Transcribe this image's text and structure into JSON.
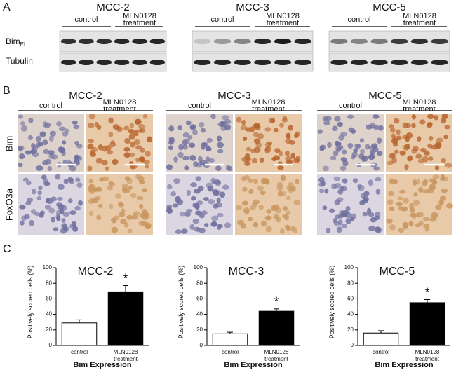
{
  "panel_a": {
    "letter": "A",
    "row_labels": [
      {
        "text": "Bim",
        "subscript": "EL"
      },
      {
        "text": "Tubulin"
      }
    ],
    "blots": [
      {
        "title": "MCC-2",
        "groups": [
          "control",
          "MLN0128 treatment"
        ]
      },
      {
        "title": "MCC-3",
        "groups": [
          "control",
          "MLN0128 treatment"
        ]
      },
      {
        "title": "MCC-5",
        "groups": [
          "control",
          "MLN0128 treatment"
        ]
      }
    ]
  },
  "panel_b": {
    "letter": "B",
    "row_labels": [
      "Bim",
      "FoxO3a"
    ],
    "sets": [
      {
        "title": "MCC-2",
        "groups": [
          "control",
          "MLN0128 treatment"
        ]
      },
      {
        "title": "MCC-3",
        "groups": [
          "control",
          "MLN0128 treatment"
        ]
      },
      {
        "title": "MCC-5",
        "groups": [
          "control",
          "MLN0128 treatment"
        ]
      }
    ]
  },
  "panel_c": {
    "letter": "C"
  },
  "chart_data": [
    {
      "type": "bar",
      "title": "MCC-2",
      "y_label": "Positively scored cells (%)",
      "x_label": "Bim Expression",
      "categories": [
        "control",
        "MLN0128 treatment"
      ],
      "values": [
        29,
        69
      ],
      "errors": [
        4,
        8
      ],
      "colors": [
        "#ffffff",
        "#000000"
      ],
      "annotation": "*",
      "ylim": [
        0,
        100
      ],
      "yticks": [
        0,
        20,
        40,
        60,
        80,
        100
      ]
    },
    {
      "type": "bar",
      "title": "MCC-3",
      "y_label": "Positively scored cells (%)",
      "x_label": "Bim Expression",
      "categories": [
        "control",
        "MLN0128 treatment"
      ],
      "values": [
        15,
        44
      ],
      "errors": [
        2,
        3
      ],
      "colors": [
        "#ffffff",
        "#000000"
      ],
      "annotation": "*",
      "ylim": [
        0,
        100
      ],
      "yticks": [
        0,
        20,
        40,
        60,
        80,
        100
      ]
    },
    {
      "type": "bar",
      "title": "MCC-5",
      "y_label": "Positively scored cells (%)",
      "x_label": "Bim Expression",
      "categories": [
        "control",
        "MLN0128 treatment"
      ],
      "values": [
        16,
        55
      ],
      "errors": [
        3,
        4
      ],
      "colors": [
        "#ffffff",
        "#000000"
      ],
      "annotation": "*",
      "ylim": [
        0,
        100
      ],
      "yticks": [
        0,
        20,
        40,
        60,
        80,
        100
      ]
    }
  ]
}
